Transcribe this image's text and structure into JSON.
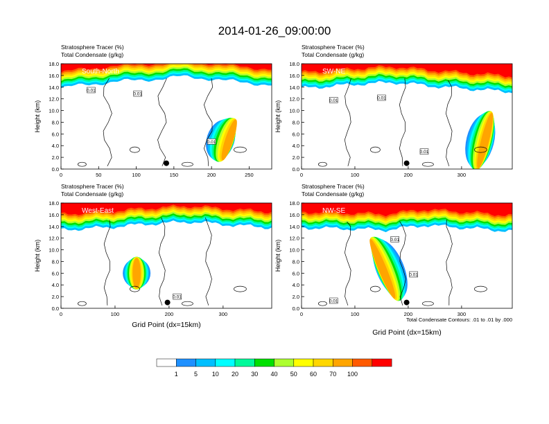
{
  "figure": {
    "title": "2014-01-26_09:00:00",
    "contour_note": "Total Condensate Contours: .01 to .01 by .000",
    "x_axis_label": "Grid Point (dx=15km)"
  },
  "colorbar": {
    "labels": [
      "1",
      "5",
      "10",
      "20",
      "30",
      "40",
      "50",
      "60",
      "70",
      "100"
    ],
    "colors": [
      "#ffffff",
      "#1e90ff",
      "#00bfff",
      "#00ffff",
      "#00fa9a",
      "#00e000",
      "#adff2f",
      "#ffff00",
      "#ffd700",
      "#ffa500",
      "#ff5a00",
      "#ff0000"
    ]
  },
  "chart_data": [
    {
      "type": "heatmap",
      "panel": "South-North",
      "label": "South-North",
      "title_line1": "Stratosphere Tracer   (%)",
      "title_line2": "Total Condensate   (g/kg)",
      "ylabel": "Height (km)",
      "xlim": [
        0,
        280
      ],
      "ylim": [
        0,
        18
      ],
      "x_ticks": [
        0,
        50,
        100,
        150,
        200,
        250
      ],
      "y_ticks": [
        "0.0",
        "2.0",
        "4.0",
        "6.0",
        "8.0",
        "10.0",
        "12.0",
        "14.0",
        "16.0",
        "18.0"
      ],
      "tropopause_km": [
        [
          0,
          15.0
        ],
        [
          30,
          15.6
        ],
        [
          80,
          16.2
        ],
        [
          130,
          16.6
        ],
        [
          160,
          17.0
        ],
        [
          200,
          16.6
        ],
        [
          240,
          16.0
        ],
        [
          280,
          15.6
        ]
      ],
      "intrusions": [
        {
          "x_center": 225,
          "top_km": 8.5,
          "bottom_km": 1.5,
          "tilt": -1.3
        }
      ],
      "contour_labels": [
        {
          "x": 40,
          "y": 13.5,
          "text": "0.01"
        },
        {
          "x": 102,
          "y": 12.9,
          "text": "0.01"
        },
        {
          "x": 200,
          "y": 4.7,
          "text": "0.01"
        }
      ],
      "marker": {
        "x": 140,
        "y": 1.0
      }
    },
    {
      "type": "heatmap",
      "panel": "SW-NE",
      "label": "SW-NE",
      "title_line1": "Stratosphere Tracer   (%)",
      "title_line2": "Total Condensate   (g/kg)",
      "ylabel": "Height (km)",
      "xlim": [
        0,
        395
      ],
      "ylim": [
        0,
        18
      ],
      "x_ticks": [
        0,
        100,
        200,
        300
      ],
      "y_ticks": [
        "0.0",
        "2.0",
        "4.0",
        "6.0",
        "8.0",
        "10.0",
        "12.0",
        "14.0",
        "16.0",
        "18.0"
      ],
      "tropopause_km": [
        [
          0,
          15.0
        ],
        [
          60,
          15.4
        ],
        [
          120,
          15.8
        ],
        [
          180,
          16.0
        ],
        [
          240,
          15.4
        ],
        [
          300,
          15.0
        ],
        [
          360,
          14.6
        ],
        [
          395,
          14.4
        ]
      ],
      "intrusions": [
        {
          "x_center": 345,
          "top_km": 9.5,
          "bottom_km": 0.2,
          "tilt": -1.0
        }
      ],
      "contour_labels": [
        {
          "x": 60,
          "y": 11.8,
          "text": "0.01"
        },
        {
          "x": 150,
          "y": 12.2,
          "text": "0.01"
        },
        {
          "x": 230,
          "y": 3.0,
          "text": "0.01"
        }
      ],
      "marker": {
        "x": 197,
        "y": 1.0
      }
    },
    {
      "type": "heatmap",
      "panel": "West-East",
      "label": "West-East",
      "title_line1": "Stratosphere Tracer   (%)",
      "title_line2": "Total Condensate   (g/kg)",
      "ylabel": "Height (km)",
      "xlim": [
        0,
        390
      ],
      "ylim": [
        0,
        18
      ],
      "x_ticks": [
        0,
        100,
        200,
        300
      ],
      "y_ticks": [
        "0.0",
        "2.0",
        "4.0",
        "6.0",
        "8.0",
        "10.0",
        "12.0",
        "14.0",
        "16.0",
        "18.0"
      ],
      "tropopause_km": [
        [
          0,
          14.6
        ],
        [
          80,
          15.0
        ],
        [
          160,
          15.6
        ],
        [
          240,
          16.0
        ],
        [
          320,
          15.4
        ],
        [
          390,
          15.0
        ]
      ],
      "intrusions": [
        {
          "x_center": 140,
          "top_km": 8.5,
          "bottom_km": 3.5,
          "tilt": 0.0
        }
      ],
      "contour_labels": [
        {
          "x": 215,
          "y": 2.0,
          "text": "0.01"
        }
      ],
      "marker": {
        "x": 197,
        "y": 1.0
      }
    },
    {
      "type": "heatmap",
      "panel": "NW-SE",
      "label": "NW-SE",
      "title_line1": "Stratosphere Tracer   (%)",
      "title_line2": "Total Condensate   (g/kg)",
      "ylabel": "Height (km)",
      "xlim": [
        0,
        395
      ],
      "ylim": [
        0,
        18
      ],
      "x_ticks": [
        0,
        100,
        200,
        300
      ],
      "y_ticks": [
        "0.0",
        "2.0",
        "4.0",
        "6.0",
        "8.0",
        "10.0",
        "12.0",
        "14.0",
        "16.0",
        "18.0"
      ],
      "tropopause_km": [
        [
          0,
          15.0
        ],
        [
          80,
          14.8
        ],
        [
          160,
          14.6
        ],
        [
          230,
          15.4
        ],
        [
          300,
          15.0
        ],
        [
          360,
          14.6
        ],
        [
          395,
          14.4
        ]
      ],
      "intrusions": [
        {
          "x_center": 150,
          "top_km": 12.0,
          "bottom_km": 1.5,
          "tilt": 1.6
        }
      ],
      "contour_labels": [
        {
          "x": 175,
          "y": 11.8,
          "text": "0.01"
        },
        {
          "x": 210,
          "y": 5.8,
          "text": "0.01"
        },
        {
          "x": 60,
          "y": 1.3,
          "text": "0.01"
        }
      ],
      "marker": {
        "x": 197,
        "y": 1.0
      }
    }
  ]
}
